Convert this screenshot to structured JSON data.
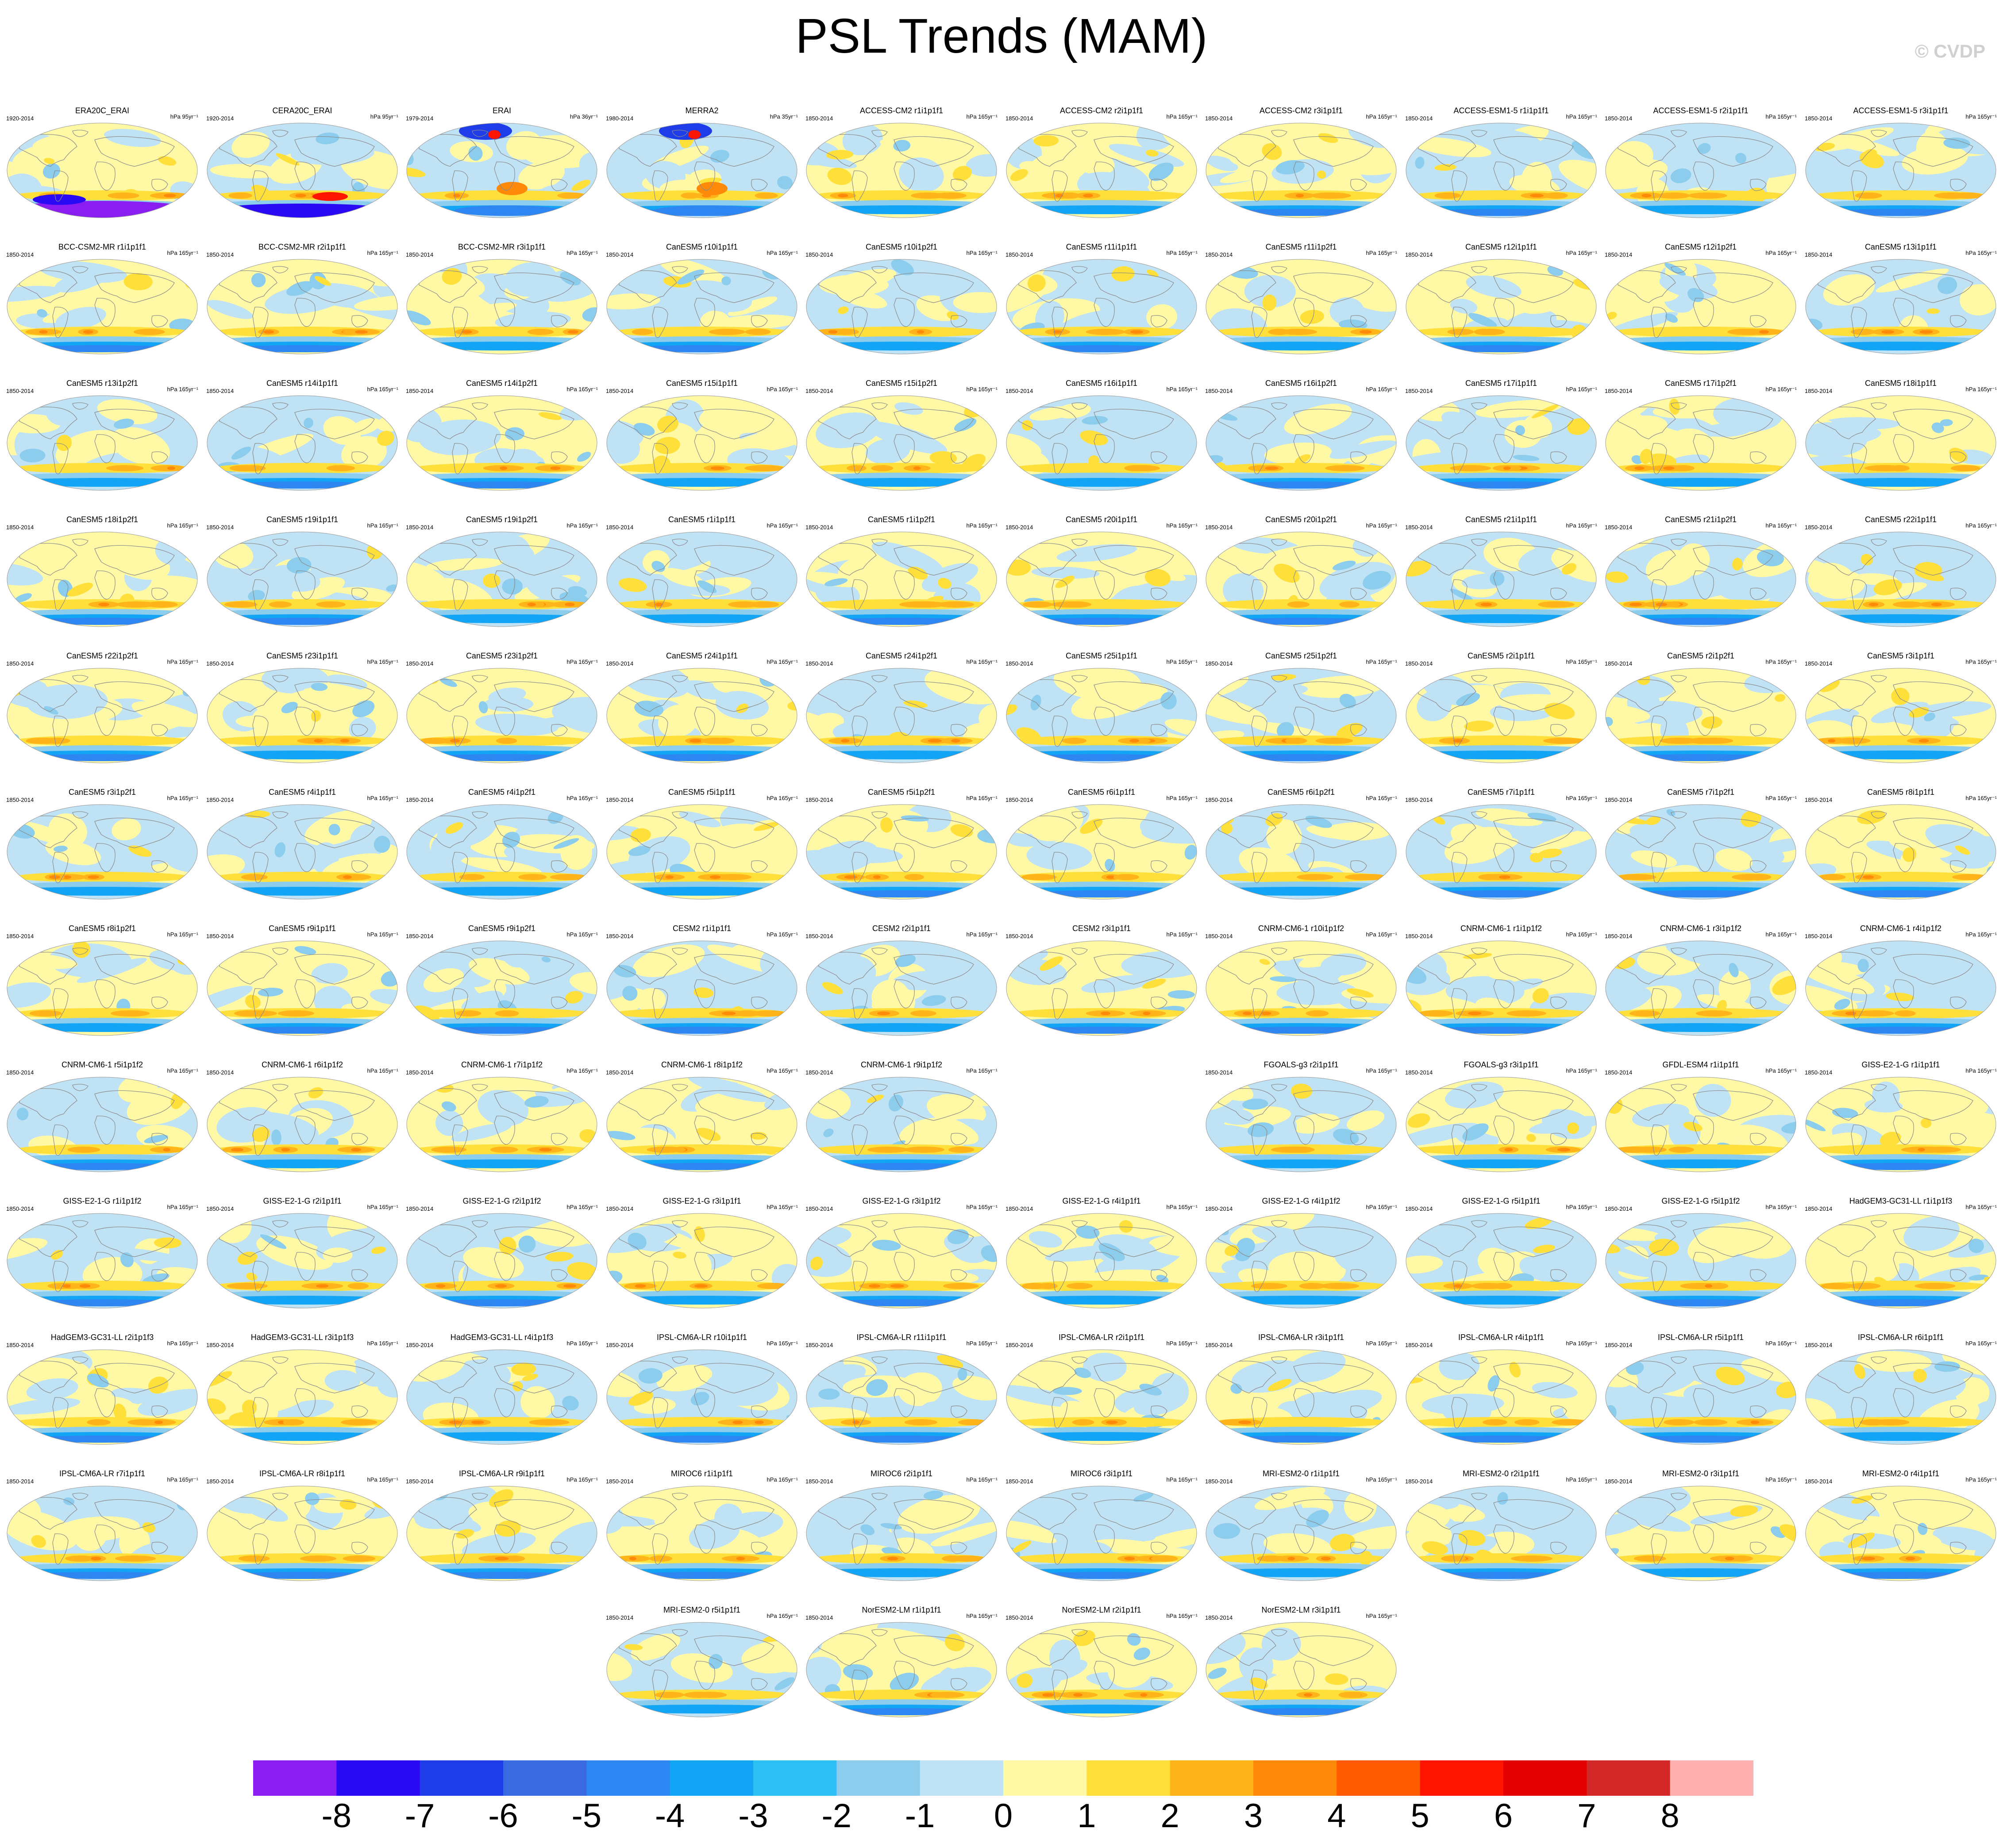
{
  "title": "PSL Trends (MAM)",
  "credit": "© CVDP",
  "colorbar": {
    "colors": [
      "#8a1ef0",
      "#2a0af5",
      "#1e3de8",
      "#3a6ae0",
      "#2e86f2",
      "#13a5f5",
      "#2cc0f5",
      "#8ccdee",
      "#bfe2f5",
      "#fff9a6",
      "#ffe03a",
      "#ffb41a",
      "#ff8a0a",
      "#ff5a00",
      "#ff1400",
      "#e20000",
      "#d22828",
      "#ffb0b0"
    ],
    "labels": [
      "-8",
      "-7",
      "-6",
      "-5",
      "-4",
      "-3",
      "-2",
      "-1",
      "0",
      "1",
      "2",
      "3",
      "4",
      "5",
      "6",
      "7",
      "8"
    ]
  },
  "panels": [
    {
      "name": "ERA20C_ERAI",
      "years": "1920-2014",
      "units": "hPa 95yr⁻¹",
      "style": "era20c"
    },
    {
      "name": "CERA20C_ERAI",
      "years": "1920-2014",
      "units": "hPa 95yr⁻¹",
      "style": "cera"
    },
    {
      "name": "ERAI",
      "years": "1979-2014",
      "units": "hPa 36yr⁻¹",
      "style": "erai"
    },
    {
      "name": "MERRA2",
      "years": "1980-2014",
      "units": "hPa 35yr⁻¹",
      "style": "merra"
    },
    {
      "name": "ACCESS-CM2 r1i1p1f1",
      "years": "1850-2014",
      "units": "hPa 165yr⁻¹"
    },
    {
      "name": "ACCESS-CM2 r2i1p1f1",
      "years": "1850-2014",
      "units": "hPa 165yr⁻¹"
    },
    {
      "name": "ACCESS-CM2 r3i1p1f1",
      "years": "1850-2014",
      "units": "hPa 165yr⁻¹"
    },
    {
      "name": "ACCESS-ESM1-5 r1i1p1f1",
      "years": "1850-2014",
      "units": "hPa 165yr⁻¹"
    },
    {
      "name": "ACCESS-ESM1-5 r2i1p1f1",
      "years": "1850-2014",
      "units": "hPa 165yr⁻¹"
    },
    {
      "name": "ACCESS-ESM1-5 r3i1p1f1",
      "years": "1850-2014",
      "units": "hPa 165yr⁻¹"
    },
    {
      "name": "BCC-CSM2-MR r1i1p1f1",
      "years": "1850-2014",
      "units": "hPa 165yr⁻¹"
    },
    {
      "name": "BCC-CSM2-MR r2i1p1f1",
      "years": "1850-2014",
      "units": "hPa 165yr⁻¹"
    },
    {
      "name": "BCC-CSM2-MR r3i1p1f1",
      "years": "1850-2014",
      "units": "hPa 165yr⁻¹"
    },
    {
      "name": "CanESM5 r10i1p1f1",
      "years": "1850-2014",
      "units": "hPa 165yr⁻¹"
    },
    {
      "name": "CanESM5 r10i1p2f1",
      "years": "1850-2014",
      "units": "hPa 165yr⁻¹"
    },
    {
      "name": "CanESM5 r11i1p1f1",
      "years": "1850-2014",
      "units": "hPa 165yr⁻¹"
    },
    {
      "name": "CanESM5 r11i1p2f1",
      "years": "1850-2014",
      "units": "hPa 165yr⁻¹"
    },
    {
      "name": "CanESM5 r12i1p1f1",
      "years": "1850-2014",
      "units": "hPa 165yr⁻¹"
    },
    {
      "name": "CanESM5 r12i1p2f1",
      "years": "1850-2014",
      "units": "hPa 165yr⁻¹"
    },
    {
      "name": "CanESM5 r13i1p1f1",
      "years": "1850-2014",
      "units": "hPa 165yr⁻¹"
    },
    {
      "name": "CanESM5 r13i1p2f1",
      "years": "1850-2014",
      "units": "hPa 165yr⁻¹"
    },
    {
      "name": "CanESM5 r14i1p1f1",
      "years": "1850-2014",
      "units": "hPa 165yr⁻¹"
    },
    {
      "name": "CanESM5 r14i1p2f1",
      "years": "1850-2014",
      "units": "hPa 165yr⁻¹"
    },
    {
      "name": "CanESM5 r15i1p1f1",
      "years": "1850-2014",
      "units": "hPa 165yr⁻¹"
    },
    {
      "name": "CanESM5 r15i1p2f1",
      "years": "1850-2014",
      "units": "hPa 165yr⁻¹"
    },
    {
      "name": "CanESM5 r16i1p1f1",
      "years": "1850-2014",
      "units": "hPa 165yr⁻¹"
    },
    {
      "name": "CanESM5 r16i1p2f1",
      "years": "1850-2014",
      "units": "hPa 165yr⁻¹"
    },
    {
      "name": "CanESM5 r17i1p1f1",
      "years": "1850-2014",
      "units": "hPa 165yr⁻¹"
    },
    {
      "name": "CanESM5 r17i1p2f1",
      "years": "1850-2014",
      "units": "hPa 165yr⁻¹"
    },
    {
      "name": "CanESM5 r18i1p1f1",
      "years": "1850-2014",
      "units": "hPa 165yr⁻¹"
    },
    {
      "name": "CanESM5 r18i1p2f1",
      "years": "1850-2014",
      "units": "hPa 165yr⁻¹"
    },
    {
      "name": "CanESM5 r19i1p1f1",
      "years": "1850-2014",
      "units": "hPa 165yr⁻¹"
    },
    {
      "name": "CanESM5 r19i1p2f1",
      "years": "1850-2014",
      "units": "hPa 165yr⁻¹"
    },
    {
      "name": "CanESM5 r1i1p1f1",
      "years": "1850-2014",
      "units": "hPa 165yr⁻¹"
    },
    {
      "name": "CanESM5 r1i1p2f1",
      "years": "1850-2014",
      "units": "hPa 165yr⁻¹"
    },
    {
      "name": "CanESM5 r20i1p1f1",
      "years": "1850-2014",
      "units": "hPa 165yr⁻¹"
    },
    {
      "name": "CanESM5 r20i1p2f1",
      "years": "1850-2014",
      "units": "hPa 165yr⁻¹"
    },
    {
      "name": "CanESM5 r21i1p1f1",
      "years": "1850-2014",
      "units": "hPa 165yr⁻¹"
    },
    {
      "name": "CanESM5 r21i1p2f1",
      "years": "1850-2014",
      "units": "hPa 165yr⁻¹"
    },
    {
      "name": "CanESM5 r22i1p1f1",
      "years": "1850-2014",
      "units": "hPa 165yr⁻¹"
    },
    {
      "name": "CanESM5 r22i1p2f1",
      "years": "1850-2014",
      "units": "hPa 165yr⁻¹"
    },
    {
      "name": "CanESM5 r23i1p1f1",
      "years": "1850-2014",
      "units": "hPa 165yr⁻¹"
    },
    {
      "name": "CanESM5 r23i1p2f1",
      "years": "1850-2014",
      "units": "hPa 165yr⁻¹"
    },
    {
      "name": "CanESM5 r24i1p1f1",
      "years": "1850-2014",
      "units": "hPa 165yr⁻¹"
    },
    {
      "name": "CanESM5 r24i1p2f1",
      "years": "1850-2014",
      "units": "hPa 165yr⁻¹"
    },
    {
      "name": "CanESM5 r25i1p1f1",
      "years": "1850-2014",
      "units": "hPa 165yr⁻¹"
    },
    {
      "name": "CanESM5 r25i1p2f1",
      "years": "1850-2014",
      "units": "hPa 165yr⁻¹"
    },
    {
      "name": "CanESM5 r2i1p1f1",
      "years": "1850-2014",
      "units": "hPa 165yr⁻¹"
    },
    {
      "name": "CanESM5 r2i1p2f1",
      "years": "1850-2014",
      "units": "hPa 165yr⁻¹"
    },
    {
      "name": "CanESM5 r3i1p1f1",
      "years": "1850-2014",
      "units": "hPa 165yr⁻¹"
    },
    {
      "name": "CanESM5 r3i1p2f1",
      "years": "1850-2014",
      "units": "hPa 165yr⁻¹"
    },
    {
      "name": "CanESM5 r4i1p1f1",
      "years": "1850-2014",
      "units": "hPa 165yr⁻¹"
    },
    {
      "name": "CanESM5 r4i1p2f1",
      "years": "1850-2014",
      "units": "hPa 165yr⁻¹"
    },
    {
      "name": "CanESM5 r5i1p1f1",
      "years": "1850-2014",
      "units": "hPa 165yr⁻¹"
    },
    {
      "name": "CanESM5 r5i1p2f1",
      "years": "1850-2014",
      "units": "hPa 165yr⁻¹"
    },
    {
      "name": "CanESM5 r6i1p1f1",
      "years": "1850-2014",
      "units": "hPa 165yr⁻¹"
    },
    {
      "name": "CanESM5 r6i1p2f1",
      "years": "1850-2014",
      "units": "hPa 165yr⁻¹"
    },
    {
      "name": "CanESM5 r7i1p1f1",
      "years": "1850-2014",
      "units": "hPa 165yr⁻¹"
    },
    {
      "name": "CanESM5 r7i1p2f1",
      "years": "1850-2014",
      "units": "hPa 165yr⁻¹"
    },
    {
      "name": "CanESM5 r8i1p1f1",
      "years": "1850-2014",
      "units": "hPa 165yr⁻¹"
    },
    {
      "name": "CanESM5 r8i1p2f1",
      "years": "1850-2014",
      "units": "hPa 165yr⁻¹"
    },
    {
      "name": "CanESM5 r9i1p1f1",
      "years": "1850-2014",
      "units": "hPa 165yr⁻¹"
    },
    {
      "name": "CanESM5 r9i1p2f1",
      "years": "1850-2014",
      "units": "hPa 165yr⁻¹"
    },
    {
      "name": "CESM2 r1i1p1f1",
      "years": "1850-2014",
      "units": "hPa 165yr⁻¹"
    },
    {
      "name": "CESM2 r2i1p1f1",
      "years": "1850-2014",
      "units": "hPa 165yr⁻¹"
    },
    {
      "name": "CESM2 r3i1p1f1",
      "years": "1850-2014",
      "units": "hPa 165yr⁻¹"
    },
    {
      "name": "CNRM-CM6-1 r10i1p1f2",
      "years": "1850-2014",
      "units": "hPa 165yr⁻¹"
    },
    {
      "name": "CNRM-CM6-1 r1i1p1f2",
      "years": "1850-2014",
      "units": "hPa 165yr⁻¹"
    },
    {
      "name": "CNRM-CM6-1 r3i1p1f2",
      "years": "1850-2014",
      "units": "hPa 165yr⁻¹"
    },
    {
      "name": "CNRM-CM6-1 r4i1p1f2",
      "years": "1850-2014",
      "units": "hPa 165yr⁻¹"
    },
    {
      "name": "CNRM-CM6-1 r5i1p1f2",
      "years": "1850-2014",
      "units": "hPa 165yr⁻¹"
    },
    {
      "name": "CNRM-CM6-1 r6i1p1f2",
      "years": "1850-2014",
      "units": "hPa 165yr⁻¹"
    },
    {
      "name": "CNRM-CM6-1 r7i1p1f2",
      "years": "1850-2014",
      "units": "hPa 165yr⁻¹"
    },
    {
      "name": "CNRM-CM6-1 r8i1p1f2",
      "years": "1850-2014",
      "units": "hPa 165yr⁻¹"
    },
    {
      "name": "CNRM-CM6-1 r9i1p1f2",
      "years": "1850-2014",
      "units": "hPa 165yr⁻¹"
    },
    null,
    {
      "name": "FGOALS-g3 r2i1p1f1",
      "years": "1850-2014",
      "units": "hPa 165yr⁻¹"
    },
    {
      "name": "FGOALS-g3 r3i1p1f1",
      "years": "1850-2014",
      "units": "hPa 165yr⁻¹"
    },
    {
      "name": "GFDL-ESM4 r1i1p1f1",
      "years": "1850-2014",
      "units": "hPa 165yr⁻¹"
    },
    {
      "name": "GISS-E2-1-G r1i1p1f1",
      "years": "1850-2014",
      "units": "hPa 165yr⁻¹"
    },
    {
      "name": "GISS-E2-1-G r1i1p1f2",
      "years": "1850-2014",
      "units": "hPa 165yr⁻¹"
    },
    {
      "name": "GISS-E2-1-G r2i1p1f1",
      "years": "1850-2014",
      "units": "hPa 165yr⁻¹"
    },
    {
      "name": "GISS-E2-1-G r2i1p1f2",
      "years": "1850-2014",
      "units": "hPa 165yr⁻¹"
    },
    {
      "name": "GISS-E2-1-G r3i1p1f1",
      "years": "1850-2014",
      "units": "hPa 165yr⁻¹"
    },
    {
      "name": "GISS-E2-1-G r3i1p1f2",
      "years": "1850-2014",
      "units": "hPa 165yr⁻¹"
    },
    {
      "name": "GISS-E2-1-G r4i1p1f1",
      "years": "1850-2014",
      "units": "hPa 165yr⁻¹"
    },
    {
      "name": "GISS-E2-1-G r4i1p1f2",
      "years": "1850-2014",
      "units": "hPa 165yr⁻¹"
    },
    {
      "name": "GISS-E2-1-G r5i1p1f1",
      "years": "1850-2014",
      "units": "hPa 165yr⁻¹"
    },
    {
      "name": "GISS-E2-1-G r5i1p1f2",
      "years": "1850-2014",
      "units": "hPa 165yr⁻¹"
    },
    {
      "name": "HadGEM3-GC31-LL r1i1p1f3",
      "years": "1850-2014",
      "units": "hPa 165yr⁻¹"
    },
    {
      "name": "HadGEM3-GC31-LL r2i1p1f3",
      "years": "1850-2014",
      "units": "hPa 165yr⁻¹"
    },
    {
      "name": "HadGEM3-GC31-LL r3i1p1f3",
      "years": "1850-2014",
      "units": "hPa 165yr⁻¹"
    },
    {
      "name": "HadGEM3-GC31-LL r4i1p1f3",
      "years": "1850-2014",
      "units": "hPa 165yr⁻¹"
    },
    {
      "name": "IPSL-CM6A-LR r10i1p1f1",
      "years": "1850-2014",
      "units": "hPa 165yr⁻¹"
    },
    {
      "name": "IPSL-CM6A-LR r11i1p1f1",
      "years": "1850-2014",
      "units": "hPa 165yr⁻¹"
    },
    {
      "name": "IPSL-CM6A-LR r2i1p1f1",
      "years": "1850-2014",
      "units": "hPa 165yr⁻¹"
    },
    {
      "name": "IPSL-CM6A-LR r3i1p1f1",
      "years": "1850-2014",
      "units": "hPa 165yr⁻¹"
    },
    {
      "name": "IPSL-CM6A-LR r4i1p1f1",
      "years": "1850-2014",
      "units": "hPa 165yr⁻¹"
    },
    {
      "name": "IPSL-CM6A-LR r5i1p1f1",
      "years": "1850-2014",
      "units": "hPa 165yr⁻¹"
    },
    {
      "name": "IPSL-CM6A-LR r6i1p1f1",
      "years": "1850-2014",
      "units": "hPa 165yr⁻¹"
    },
    {
      "name": "IPSL-CM6A-LR r7i1p1f1",
      "years": "1850-2014",
      "units": "hPa 165yr⁻¹"
    },
    {
      "name": "IPSL-CM6A-LR r8i1p1f1",
      "years": "1850-2014",
      "units": "hPa 165yr⁻¹"
    },
    {
      "name": "IPSL-CM6A-LR r9i1p1f1",
      "years": "1850-2014",
      "units": "hPa 165yr⁻¹"
    },
    {
      "name": "MIROC6 r1i1p1f1",
      "years": "1850-2014",
      "units": "hPa 165yr⁻¹"
    },
    {
      "name": "MIROC6 r2i1p1f1",
      "years": "1850-2014",
      "units": "hPa 165yr⁻¹"
    },
    {
      "name": "MIROC6 r3i1p1f1",
      "years": "1850-2014",
      "units": "hPa 165yr⁻¹"
    },
    {
      "name": "MRI-ESM2-0 r1i1p1f1",
      "years": "1850-2014",
      "units": "hPa 165yr⁻¹"
    },
    {
      "name": "MRI-ESM2-0 r2i1p1f1",
      "years": "1850-2014",
      "units": "hPa 165yr⁻¹"
    },
    {
      "name": "MRI-ESM2-0 r3i1p1f1",
      "years": "1850-2014",
      "units": "hPa 165yr⁻¹"
    },
    {
      "name": "MRI-ESM2-0 r4i1p1f1",
      "years": "1850-2014",
      "units": "hPa 165yr⁻¹"
    },
    null,
    null,
    null,
    {
      "name": "MRI-ESM2-0 r5i1p1f1",
      "years": "1850-2014",
      "units": "hPa 165yr⁻¹"
    },
    {
      "name": "NorESM2-LM r1i1p1f1",
      "years": "1850-2014",
      "units": "hPa 165yr⁻¹"
    },
    {
      "name": "NorESM2-LM r2i1p1f1",
      "years": "1850-2014",
      "units": "hPa 165yr⁻¹"
    },
    {
      "name": "NorESM2-LM r3i1p1f1",
      "years": "1850-2014",
      "units": "hPa 165yr⁻¹"
    }
  ]
}
